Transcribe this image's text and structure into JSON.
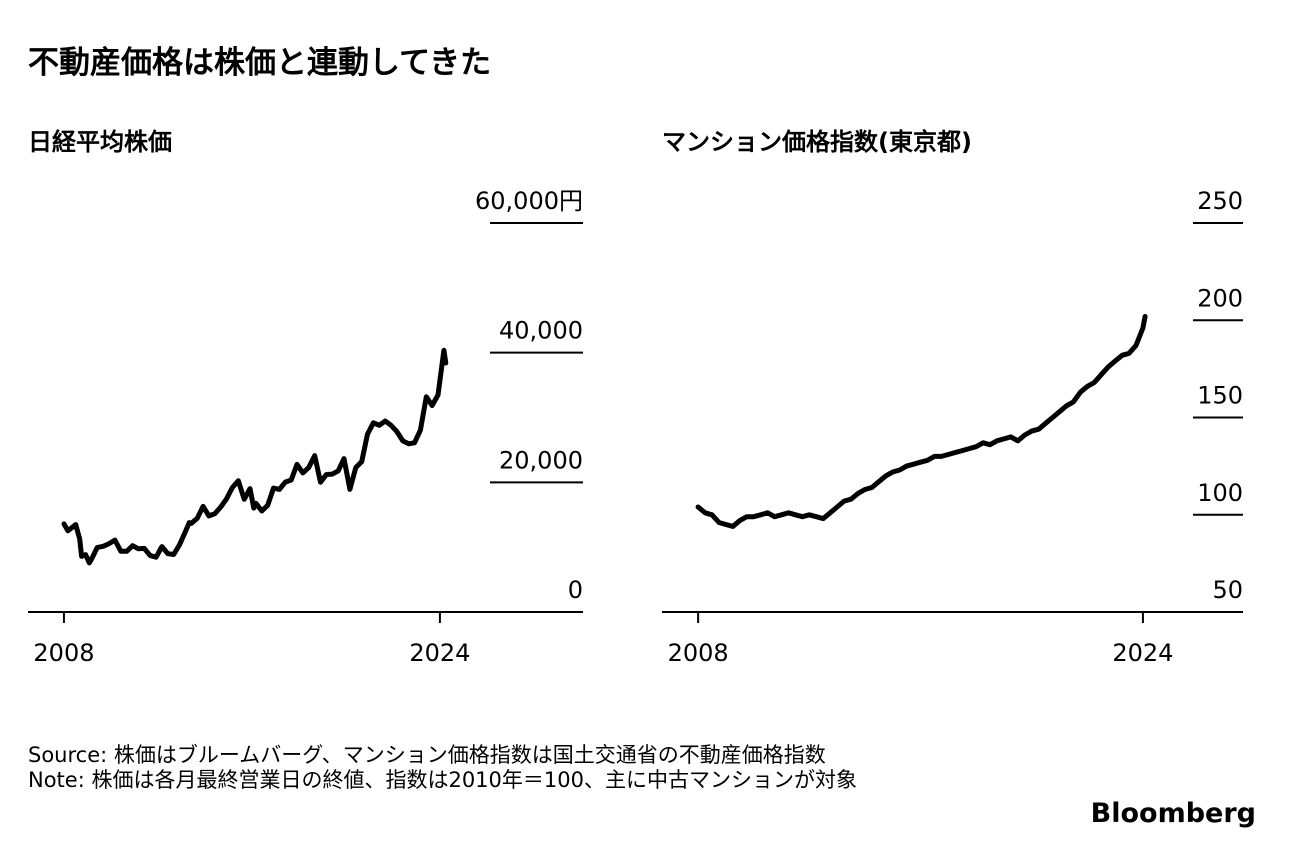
{
  "title": "不動産価格は株価と連動してきた",
  "source": "Source: 株価はブルームバーグ、マンション価格指数は国土交通省の不動産価格指数",
  "note": "Note: 株価は各月最終営業日の終値、指数は2010年＝100、主に中古マンションが対象",
  "logo": "Bloomberg",
  "chart_data": [
    {
      "type": "line",
      "title": "日経平均株価",
      "color": "#000000",
      "xlim": [
        2006.47,
        2030.09
      ],
      "xticks": [
        2008,
        2024
      ],
      "ylim": [
        0,
        60000
      ],
      "yticks": [
        0,
        {
          "value": 20000,
          "label": "20,000"
        },
        {
          "value": 40000,
          "label": "40,000"
        },
        {
          "value": 60000,
          "label": "60,000円"
        }
      ],
      "x": [
        2008.0,
        2008.17,
        2008.5,
        2008.67,
        2008.75,
        2008.92,
        2009.08,
        2009.17,
        2009.42,
        2009.67,
        2009.92,
        2010.17,
        2010.42,
        2010.67,
        2010.92,
        2011.17,
        2011.42,
        2011.67,
        2011.92,
        2012.17,
        2012.42,
        2012.67,
        2012.92,
        2013.17,
        2013.33,
        2013.42,
        2013.67,
        2013.92,
        2014.17,
        2014.42,
        2014.67,
        2014.92,
        2015.17,
        2015.42,
        2015.67,
        2015.92,
        2016.08,
        2016.17,
        2016.42,
        2016.67,
        2016.92,
        2017.17,
        2017.42,
        2017.67,
        2017.92,
        2018.17,
        2018.42,
        2018.67,
        2018.92,
        2019.17,
        2019.42,
        2019.67,
        2019.92,
        2020.17,
        2020.42,
        2020.67,
        2020.92,
        2021.17,
        2021.42,
        2021.67,
        2021.92,
        2022.17,
        2022.42,
        2022.67,
        2022.92,
        2023.17,
        2023.42,
        2023.67,
        2023.92,
        2024.17,
        2024.25
      ],
      "values": [
        13592,
        12525,
        13481,
        11259,
        8577,
        8860,
        7568,
        8109,
        9958,
        10133,
        10546,
        11089,
        9383,
        9369,
        10229,
        9755,
        9816,
        8700,
        8455,
        10084,
        9007,
        8870,
        10395,
        12398,
        13774,
        13677,
        14456,
        16291,
        14828,
        15162,
        16174,
        17451,
        19207,
        20236,
        17388,
        19034,
        16027,
        16759,
        15576,
        16450,
        19114,
        18909,
        20033,
        20356,
        22765,
        21454,
        22305,
        24120,
        20015,
        21206,
        21276,
        21756,
        23657,
        18917,
        22288,
        23185,
        27444,
        29179,
        28792,
        29453,
        28792,
        27821,
        26393,
        25937,
        26095,
        28041,
        33189,
        31858,
        33464,
        40369,
        38406
      ]
    },
    {
      "type": "line",
      "title": "マンション価格指数(東京都)",
      "color": "#000000",
      "xlim": [
        2006.7,
        2027.6
      ],
      "xticks": [
        2008,
        2024
      ],
      "ylim": [
        50,
        250
      ],
      "yticks": [
        50,
        100,
        150,
        200,
        250
      ],
      "x": [
        2008.0,
        2008.25,
        2008.5,
        2008.75,
        2009.0,
        2009.25,
        2009.5,
        2009.75,
        2010.0,
        2010.25,
        2010.5,
        2010.75,
        2011.0,
        2011.25,
        2011.5,
        2011.75,
        2012.0,
        2012.25,
        2012.5,
        2012.75,
        2013.0,
        2013.25,
        2013.5,
        2013.75,
        2014.0,
        2014.25,
        2014.5,
        2014.75,
        2015.0,
        2015.25,
        2015.5,
        2015.75,
        2016.0,
        2016.25,
        2016.5,
        2016.75,
        2017.0,
        2017.25,
        2017.5,
        2017.75,
        2018.0,
        2018.25,
        2018.5,
        2018.75,
        2019.0,
        2019.25,
        2019.5,
        2019.75,
        2020.0,
        2020.25,
        2020.5,
        2020.75,
        2021.0,
        2021.25,
        2021.5,
        2021.75,
        2022.0,
        2022.25,
        2022.5,
        2022.75,
        2023.0,
        2023.25,
        2023.5,
        2023.75,
        2024.0,
        2024.08
      ],
      "values": [
        104,
        101,
        100,
        96,
        95,
        94,
        97,
        99,
        99,
        100,
        101,
        99,
        100,
        101,
        100,
        99,
        100,
        99,
        98,
        101,
        104,
        107,
        108,
        111,
        113,
        114,
        117,
        120,
        122,
        123,
        125,
        126,
        127,
        128,
        130,
        130,
        131,
        132,
        133,
        134,
        135,
        137,
        136,
        138,
        139,
        140,
        138,
        141,
        143,
        144,
        147,
        150,
        153,
        156,
        158,
        163,
        166,
        168,
        172,
        176,
        179,
        182,
        183,
        187,
        196,
        202
      ]
    }
  ]
}
